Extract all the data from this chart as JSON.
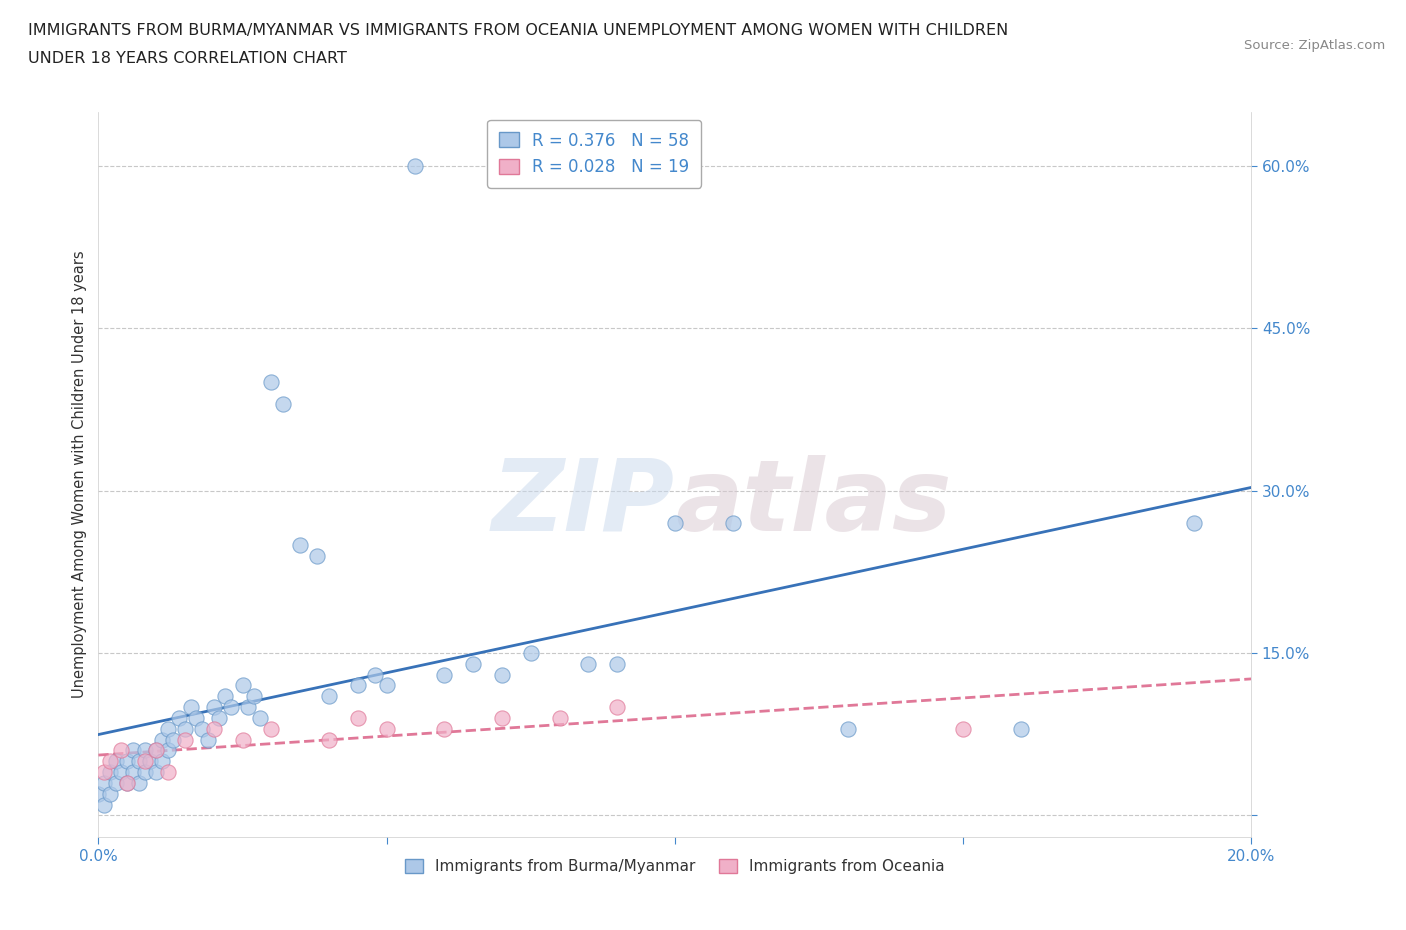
{
  "title_line1": "IMMIGRANTS FROM BURMA/MYANMAR VS IMMIGRANTS FROM OCEANIA UNEMPLOYMENT AMONG WOMEN WITH CHILDREN",
  "title_line2": "UNDER 18 YEARS CORRELATION CHART",
  "source_text": "Source: ZipAtlas.com",
  "ylabel": "Unemployment Among Women with Children Under 18 years",
  "xlim": [
    0.0,
    0.2
  ],
  "ylim": [
    -0.02,
    0.65
  ],
  "ytick_vals": [
    0.0,
    0.15,
    0.3,
    0.45,
    0.6
  ],
  "ytick_labels": [
    "",
    "15.0%",
    "30.0%",
    "45.0%",
    "60.0%"
  ],
  "xtick_vals": [
    0.0,
    0.05,
    0.1,
    0.15,
    0.2
  ],
  "xtick_labels": [
    "0.0%",
    "",
    "",
    "",
    "20.0%"
  ],
  "grid_color": "#c8c8c8",
  "background_color": "#ffffff",
  "watermark_text": "ZIPatlas",
  "series1_color": "#adc8e8",
  "series2_color": "#f0b0c8",
  "series1_edge": "#6898c8",
  "series2_edge": "#e07898",
  "trendline1_color": "#3872b8",
  "trendline2_color": "#e07898",
  "series1_label_r": "R = 0.376",
  "series1_label_n": "N = 58",
  "series2_label_r": "R = 0.028",
  "series2_label_n": "N = 19",
  "bottom_label1": "Immigrants from Burma/Myanmar",
  "bottom_label2": "Immigrants from Oceania",
  "s1_x": [
    0.0,
    0.001,
    0.001,
    0.002,
    0.002,
    0.003,
    0.003,
    0.004,
    0.005,
    0.005,
    0.006,
    0.006,
    0.007,
    0.007,
    0.008,
    0.008,
    0.009,
    0.01,
    0.01,
    0.011,
    0.011,
    0.012,
    0.012,
    0.013,
    0.014,
    0.015,
    0.016,
    0.017,
    0.018,
    0.019,
    0.02,
    0.021,
    0.022,
    0.023,
    0.025,
    0.026,
    0.027,
    0.028,
    0.03,
    0.032,
    0.035,
    0.038,
    0.04,
    0.045,
    0.048,
    0.05,
    0.055,
    0.06,
    0.065,
    0.07,
    0.075,
    0.085,
    0.09,
    0.1,
    0.11,
    0.13,
    0.16,
    0.19
  ],
  "s1_y": [
    0.02,
    0.03,
    0.01,
    0.04,
    0.02,
    0.03,
    0.05,
    0.04,
    0.03,
    0.05,
    0.04,
    0.06,
    0.05,
    0.03,
    0.06,
    0.04,
    0.05,
    0.06,
    0.04,
    0.07,
    0.05,
    0.08,
    0.06,
    0.07,
    0.09,
    0.08,
    0.1,
    0.09,
    0.08,
    0.07,
    0.1,
    0.09,
    0.11,
    0.1,
    0.12,
    0.1,
    0.11,
    0.09,
    0.4,
    0.38,
    0.25,
    0.24,
    0.11,
    0.12,
    0.13,
    0.12,
    0.6,
    0.13,
    0.14,
    0.13,
    0.15,
    0.14,
    0.14,
    0.27,
    0.27,
    0.08,
    0.08,
    0.27
  ],
  "s2_x": [
    0.001,
    0.002,
    0.004,
    0.005,
    0.008,
    0.01,
    0.012,
    0.015,
    0.02,
    0.025,
    0.03,
    0.04,
    0.045,
    0.05,
    0.06,
    0.07,
    0.08,
    0.09,
    0.15
  ],
  "s2_y": [
    0.04,
    0.05,
    0.06,
    0.03,
    0.05,
    0.06,
    0.04,
    0.07,
    0.08,
    0.07,
    0.08,
    0.07,
    0.09,
    0.08,
    0.08,
    0.09,
    0.09,
    0.1,
    0.08
  ]
}
